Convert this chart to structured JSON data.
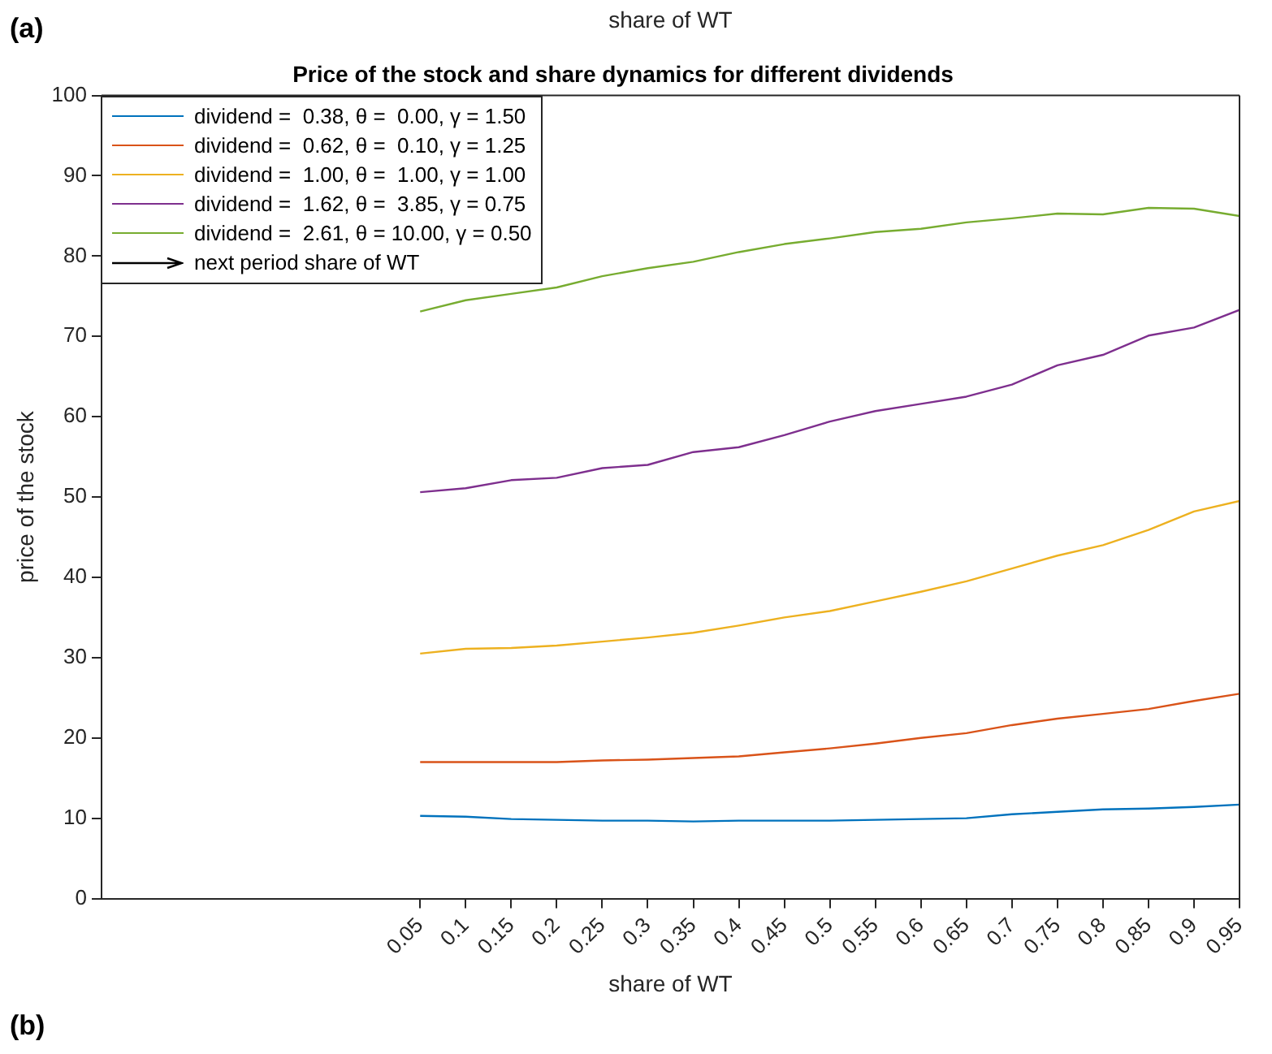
{
  "chart_data": {
    "type": "line",
    "title": "Price of the stock and share dynamics for different dividends",
    "xlabel": "share of WT",
    "ylabel": "price of the stock",
    "annotations": [
      "share of WT",
      "(a)",
      "(b)",
      "next period share of WT"
    ],
    "x": [
      0.05,
      0.1,
      0.15,
      0.2,
      0.25,
      0.3,
      0.35,
      0.4,
      0.45,
      0.5,
      0.55,
      0.6,
      0.65,
      0.7,
      0.75,
      0.8,
      0.85,
      0.9,
      0.95
    ],
    "series": [
      {
        "name": "dividend =  0.38, θ =  0.00, γ = 1.50",
        "color": "#0072bd",
        "values": [
          10.3,
          10.2,
          9.9,
          9.8,
          9.7,
          9.7,
          9.6,
          9.7,
          9.7,
          9.7,
          9.8,
          9.9,
          10.0,
          10.5,
          10.8,
          11.1,
          11.2,
          11.4,
          11.7
        ]
      },
      {
        "name": "dividend =  0.62, θ =  0.10, γ = 1.25",
        "color": "#d95319",
        "values": [
          17.0,
          17.0,
          17.0,
          17.0,
          17.2,
          17.3,
          17.5,
          17.7,
          18.2,
          18.7,
          19.3,
          20.0,
          20.6,
          21.6,
          22.4,
          23.0,
          23.6,
          24.6,
          25.5
        ]
      },
      {
        "name": "dividend =  1.00, θ =  1.00, γ = 1.00",
        "color": "#edb120",
        "values": [
          30.5,
          31.1,
          31.2,
          31.5,
          32.0,
          32.5,
          33.1,
          34.0,
          35.0,
          35.8,
          37.0,
          38.2,
          39.5,
          41.1,
          42.7,
          44.0,
          45.9,
          48.2,
          49.5
        ]
      },
      {
        "name": "dividend =  1.62, θ =  3.85, γ = 0.75",
        "color": "#7e2f8e",
        "values": [
          50.6,
          51.1,
          52.1,
          52.4,
          53.6,
          54.0,
          55.6,
          56.2,
          57.7,
          59.4,
          60.7,
          61.6,
          62.5,
          64.0,
          66.4,
          67.7,
          70.1,
          71.1,
          73.3
        ]
      },
      {
        "name": "dividend =  2.61, θ = 10.00, γ = 0.50",
        "color": "#77ac30",
        "values": [
          73.1,
          74.5,
          75.3,
          76.1,
          77.5,
          78.5,
          79.3,
          80.5,
          81.5,
          82.2,
          83.0,
          83.4,
          84.2,
          84.7,
          85.3,
          85.2,
          86.0,
          85.9,
          85.0
        ]
      }
    ],
    "xlim": [
      -0.3,
      0.95
    ],
    "xticks": [
      0.05,
      0.1,
      0.15,
      0.2,
      0.25,
      0.3,
      0.35,
      0.4,
      0.45,
      0.5,
      0.55,
      0.6,
      0.65,
      0.7,
      0.75,
      0.8,
      0.85,
      0.9,
      0.95
    ],
    "ylim": [
      0,
      100
    ],
    "yticks": [
      0,
      10,
      20,
      30,
      40,
      50,
      60,
      70,
      80,
      90,
      100
    ],
    "grid": false,
    "legend": "top left",
    "marker": "none",
    "line_style": "solid"
  }
}
